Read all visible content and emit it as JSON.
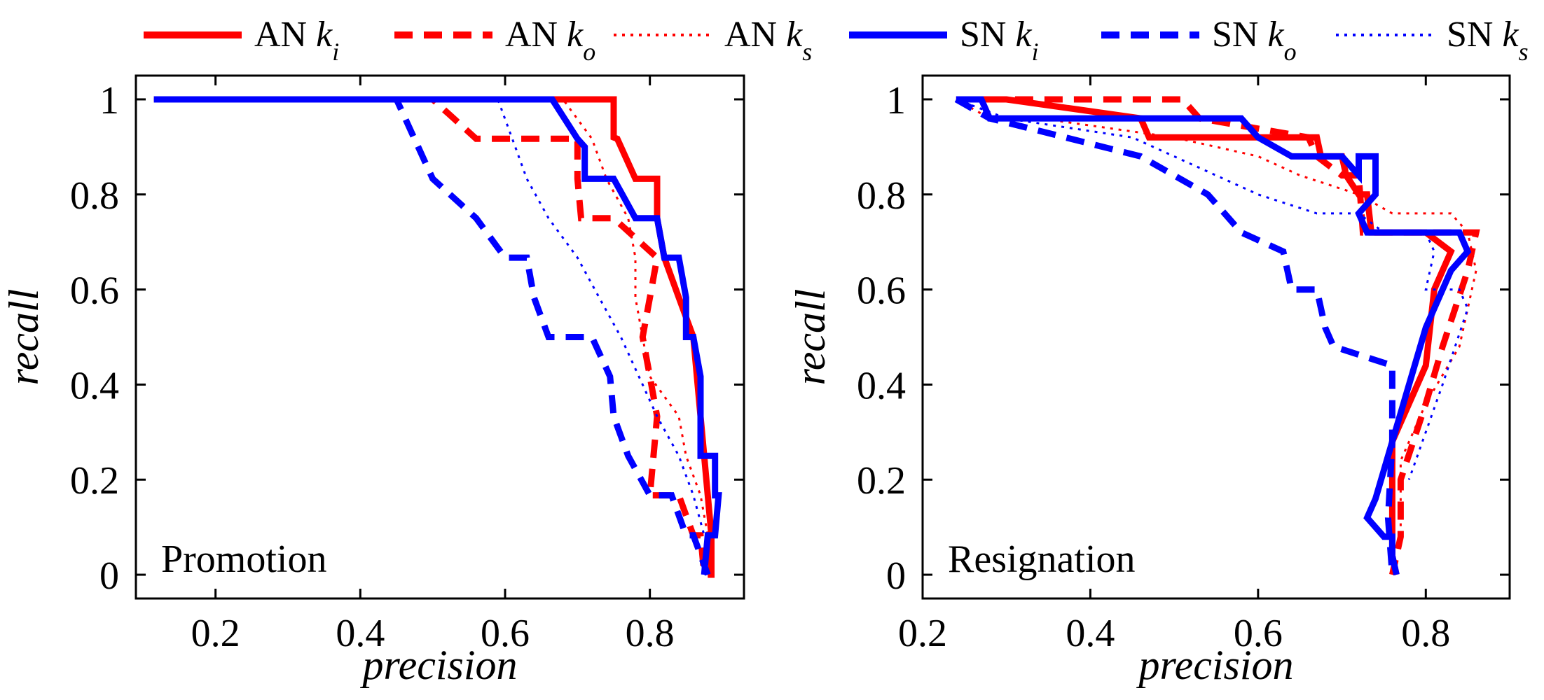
{
  "legend": {
    "entries": [
      {
        "prefix": "AN",
        "k": "k",
        "sub": "i",
        "color": "#ff0000",
        "dash": "solid"
      },
      {
        "prefix": "AN",
        "k": "k",
        "sub": "o",
        "color": "#ff0000",
        "dash": "dashed"
      },
      {
        "prefix": "AN",
        "k": "k",
        "sub": "s",
        "color": "#ff0000",
        "dash": "dotted"
      },
      {
        "prefix": "SN",
        "k": "k",
        "sub": "i",
        "color": "#0000ff",
        "dash": "solid"
      },
      {
        "prefix": "SN",
        "k": "k",
        "sub": "o",
        "color": "#0000ff",
        "dash": "dashed"
      },
      {
        "prefix": "SN",
        "k": "k",
        "sub": "s",
        "color": "#0000ff",
        "dash": "dotted"
      }
    ]
  },
  "chart_data": [
    {
      "type": "line",
      "panel_label": "Promotion",
      "xlabel": "precision",
      "ylabel": "recall",
      "xlim": [
        0.09,
        0.93
      ],
      "ylim": [
        -0.05,
        1.05
      ],
      "xticks": [
        0.2,
        0.4,
        0.6,
        0.8
      ],
      "xtick_labels": [
        "0.2",
        "0.4",
        "0.6",
        "0.8"
      ],
      "yticks": [
        0,
        0.2,
        0.4,
        0.6,
        0.8,
        1
      ],
      "ytick_labels": [
        "0",
        "0.2",
        "0.4",
        "0.6",
        "0.8",
        "1"
      ],
      "grid": false,
      "series": [
        {
          "name": "AN k_i",
          "color": "#ff0000",
          "dash": "solid",
          "x": [
            0.115,
            0.75,
            0.75,
            0.755,
            0.78,
            0.81,
            0.81,
            0.82,
            0.82,
            0.84,
            0.86,
            0.865,
            0.87,
            0.875,
            0.88,
            0.885,
            0.885,
            0.88
          ],
          "y": [
            1,
            1,
            0.92,
            0.917,
            0.833,
            0.833,
            0.75,
            0.667,
            0.667,
            0.583,
            0.5,
            0.417,
            0.333,
            0.25,
            0.167,
            0.083,
            0.0,
            0.0
          ]
        },
        {
          "name": "AN k_o",
          "color": "#ff0000",
          "dash": "dashed",
          "x": [
            0.115,
            0.5,
            0.56,
            0.7,
            0.7,
            0.705,
            0.75,
            0.81,
            0.8,
            0.79,
            0.8,
            0.81,
            0.8,
            0.84,
            0.86,
            0.87,
            0.875
          ],
          "y": [
            1,
            1,
            0.917,
            0.917,
            0.833,
            0.75,
            0.75,
            0.667,
            0.583,
            0.5,
            0.417,
            0.333,
            0.167,
            0.167,
            0.083,
            0.083,
            0.0
          ]
        },
        {
          "name": "AN k_s",
          "color": "#ff0000",
          "dash": "dotted",
          "x": [
            0.115,
            0.68,
            0.72,
            0.74,
            0.77,
            0.78,
            0.78,
            0.79,
            0.8,
            0.84,
            0.85,
            0.87,
            0.88
          ],
          "y": [
            1,
            1,
            0.917,
            0.833,
            0.75,
            0.667,
            0.583,
            0.5,
            0.417,
            0.333,
            0.25,
            0.167,
            0.083
          ]
        },
        {
          "name": "SN k_i",
          "color": "#0000ff",
          "dash": "solid",
          "x": [
            0.115,
            0.665,
            0.7,
            0.71,
            0.71,
            0.75,
            0.78,
            0.81,
            0.82,
            0.84,
            0.85,
            0.85,
            0.86,
            0.87,
            0.87,
            0.89,
            0.89,
            0.895,
            0.89,
            0.88,
            0.875
          ],
          "y": [
            1,
            1,
            0.917,
            0.9,
            0.833,
            0.833,
            0.75,
            0.75,
            0.667,
            0.667,
            0.583,
            0.5,
            0.5,
            0.417,
            0.25,
            0.25,
            0.167,
            0.167,
            0.083,
            0.083,
            0.0
          ]
        },
        {
          "name": "SN k_o",
          "color": "#0000ff",
          "dash": "dashed",
          "x": [
            0.115,
            0.45,
            0.5,
            0.56,
            0.6,
            0.63,
            0.64,
            0.66,
            0.72,
            0.745,
            0.75,
            0.77,
            0.8,
            0.83,
            0.85,
            0.86,
            0.88
          ],
          "y": [
            1,
            1,
            0.833,
            0.75,
            0.667,
            0.667,
            0.583,
            0.5,
            0.5,
            0.417,
            0.333,
            0.25,
            0.167,
            0.167,
            0.083,
            0.083,
            0.0
          ]
        },
        {
          "name": "SN k_s",
          "color": "#0000ff",
          "dash": "dotted",
          "x": [
            0.115,
            0.59,
            0.61,
            0.63,
            0.66,
            0.7,
            0.73,
            0.76,
            0.81,
            0.84,
            0.86,
            0.875
          ],
          "y": [
            1,
            1,
            0.917,
            0.833,
            0.75,
            0.667,
            0.583,
            0.5,
            0.333,
            0.25,
            0.167,
            0.083
          ]
        }
      ]
    },
    {
      "type": "line",
      "panel_label": "Resignation",
      "xlabel": "precision",
      "ylabel": "recall",
      "xlim": [
        0.2,
        0.9
      ],
      "ylim": [
        -0.05,
        1.05
      ],
      "xticks": [
        0.2,
        0.4,
        0.6,
        0.8
      ],
      "xtick_labels": [
        "0.2",
        "0.4",
        "0.6",
        "0.8"
      ],
      "yticks": [
        0,
        0.2,
        0.4,
        0.6,
        0.8,
        1
      ],
      "ytick_labels": [
        "0",
        "0.2",
        "0.4",
        "0.6",
        "0.8",
        "1"
      ],
      "grid": false,
      "series": [
        {
          "name": "AN k_i",
          "color": "#ff0000",
          "dash": "solid",
          "x": [
            0.24,
            0.3,
            0.46,
            0.47,
            0.67,
            0.675,
            0.7,
            0.705,
            0.72,
            0.73,
            0.735,
            0.8,
            0.83,
            0.81,
            0.8,
            0.76,
            0.76,
            0.765
          ],
          "y": [
            1,
            1,
            0.96,
            0.92,
            0.92,
            0.88,
            0.88,
            0.84,
            0.8,
            0.8,
            0.72,
            0.72,
            0.68,
            0.6,
            0.44,
            0.28,
            0.04,
            0.0
          ]
        },
        {
          "name": "AN k_o",
          "color": "#ff0000",
          "dash": "dashed",
          "x": [
            0.24,
            0.3,
            0.51,
            0.53,
            0.66,
            0.67,
            0.7,
            0.72,
            0.725,
            0.74,
            0.86,
            0.85,
            0.82,
            0.8,
            0.77,
            0.77,
            0.76
          ],
          "y": [
            1,
            1,
            1,
            0.96,
            0.92,
            0.88,
            0.84,
            0.84,
            0.72,
            0.72,
            0.72,
            0.64,
            0.48,
            0.36,
            0.2,
            0.08,
            0.0
          ]
        },
        {
          "name": "AN k_s",
          "color": "#ff0000",
          "dash": "dotted",
          "x": [
            0.24,
            0.28,
            0.34,
            0.5,
            0.6,
            0.65,
            0.72,
            0.76,
            0.83,
            0.85,
            0.86,
            0.84,
            0.8,
            0.77,
            0.77
          ],
          "y": [
            1,
            0.96,
            0.96,
            0.92,
            0.88,
            0.84,
            0.8,
            0.76,
            0.76,
            0.72,
            0.64,
            0.48,
            0.36,
            0.24,
            0.08
          ]
        },
        {
          "name": "SN k_i",
          "color": "#0000ff",
          "dash": "solid",
          "x": [
            0.24,
            0.27,
            0.28,
            0.58,
            0.6,
            0.64,
            0.7,
            0.72,
            0.72,
            0.74,
            0.74,
            0.72,
            0.73,
            0.77,
            0.84,
            0.85,
            0.83,
            0.8,
            0.76,
            0.74,
            0.73,
            0.75,
            0.76,
            0.76,
            0.765
          ],
          "y": [
            1,
            1,
            0.96,
            0.96,
            0.92,
            0.88,
            0.88,
            0.84,
            0.88,
            0.88,
            0.8,
            0.76,
            0.72,
            0.72,
            0.72,
            0.68,
            0.64,
            0.52,
            0.28,
            0.16,
            0.12,
            0.08,
            0.08,
            0.04,
            0.0
          ]
        },
        {
          "name": "SN k_o",
          "color": "#0000ff",
          "dash": "dashed",
          "x": [
            0.24,
            0.28,
            0.46,
            0.5,
            0.54,
            0.56,
            0.58,
            0.63,
            0.64,
            0.67,
            0.68,
            0.69,
            0.76,
            0.76,
            0.755,
            0.76
          ],
          "y": [
            1,
            0.96,
            0.88,
            0.84,
            0.8,
            0.76,
            0.72,
            0.68,
            0.6,
            0.6,
            0.52,
            0.48,
            0.44,
            0.28,
            0.12,
            0.0
          ]
        },
        {
          "name": "SN k_s",
          "color": "#0000ff",
          "dash": "dotted",
          "x": [
            0.24,
            0.3,
            0.45,
            0.55,
            0.6,
            0.67,
            0.72,
            0.75,
            0.8,
            0.81,
            0.8,
            0.84,
            0.85,
            0.82,
            0.78
          ],
          "y": [
            1,
            0.96,
            0.92,
            0.84,
            0.8,
            0.76,
            0.76,
            0.72,
            0.72,
            0.68,
            0.6,
            0.6,
            0.56,
            0.4,
            0.2
          ]
        }
      ]
    }
  ]
}
